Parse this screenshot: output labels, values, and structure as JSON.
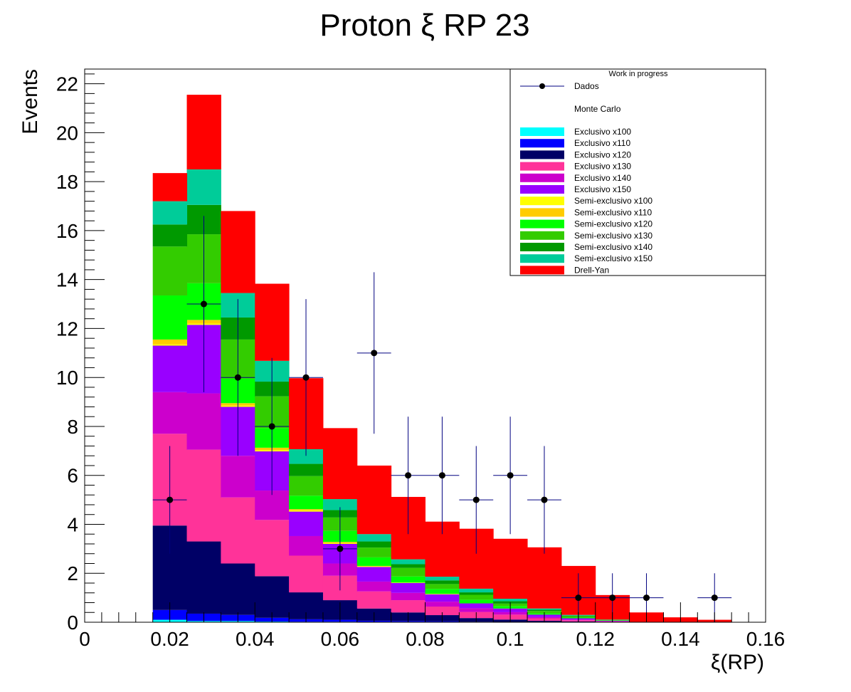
{
  "chart_data": {
    "type": "bar",
    "stacked": true,
    "title": "Proton ξ RP 23",
    "xlabel": "ξ(RP)",
    "ylabel": "Events",
    "xlim": [
      0,
      0.16
    ],
    "ylim": [
      0,
      22.6
    ],
    "xticks": [
      "0",
      "0.02",
      "0.04",
      "0.06",
      "0.08",
      "0.1",
      "0.12",
      "0.14",
      "0.16"
    ],
    "yticks": [
      "0",
      "2",
      "4",
      "6",
      "8",
      "10",
      "12",
      "14",
      "16",
      "18",
      "20",
      "22"
    ],
    "bin_edges": [
      0.016,
      0.024,
      0.032,
      0.04,
      0.048,
      0.056,
      0.064,
      0.072,
      0.08,
      0.088,
      0.096,
      0.104,
      0.112,
      0.12,
      0.128,
      0.136,
      0.144,
      0.152
    ],
    "legend": {
      "header": "Work in progress",
      "data_label": "Dados",
      "mc_label": "Monte Carlo",
      "placement": "top-right"
    },
    "series": [
      {
        "name": "Exclusivo x100",
        "color": "#00ffff",
        "values": [
          0.1,
          0.05,
          0.05,
          0.03,
          0.02,
          0.02,
          0.01,
          0.01,
          0.01,
          0,
          0,
          0,
          0,
          0,
          0,
          0,
          0
        ]
      },
      {
        "name": "Exclusivo x110",
        "color": "#0000ff",
        "values": [
          0.4,
          0.3,
          0.25,
          0.15,
          0.1,
          0.08,
          0.05,
          0.04,
          0.03,
          0.02,
          0.01,
          0.01,
          0,
          0,
          0,
          0,
          0
        ]
      },
      {
        "name": "Exclusivo x120",
        "color": "#000066",
        "values": [
          3.45,
          2.95,
          2.1,
          1.7,
          1.1,
          0.8,
          0.5,
          0.35,
          0.25,
          0.15,
          0.1,
          0.05,
          0.03,
          0.01,
          0,
          0,
          0
        ]
      },
      {
        "name": "Exclusivo x130",
        "color": "#ff3399",
        "values": [
          3.75,
          3.75,
          2.7,
          2.3,
          1.5,
          1.0,
          0.7,
          0.5,
          0.35,
          0.25,
          0.2,
          0.1,
          0.05,
          0.02,
          0,
          0,
          0
        ]
      },
      {
        "name": "Exclusivo x140",
        "color": "#cc00cc",
        "values": [
          1.7,
          2.3,
          1.7,
          1.2,
          0.8,
          0.5,
          0.4,
          0.3,
          0.2,
          0.15,
          0.1,
          0.05,
          0.03,
          0.01,
          0,
          0,
          0
        ]
      },
      {
        "name": "Exclusivo x150",
        "color": "#9900ff",
        "values": [
          1.9,
          2.8,
          2.0,
          1.6,
          1.0,
          0.8,
          0.6,
          0.4,
          0.3,
          0.2,
          0.15,
          0.1,
          0.05,
          0.02,
          0,
          0,
          0
        ]
      },
      {
        "name": "Semi-exclusivo x100",
        "color": "#ffff00",
        "values": [
          0.05,
          0.05,
          0.05,
          0.05,
          0.05,
          0.03,
          0.02,
          0.01,
          0.01,
          0,
          0,
          0,
          0,
          0,
          0,
          0,
          0
        ]
      },
      {
        "name": "Semi-exclusivo x110",
        "color": "#ffcc00",
        "values": [
          0.2,
          0.15,
          0.1,
          0.1,
          0.05,
          0.05,
          0.02,
          0.01,
          0.01,
          0,
          0,
          0,
          0,
          0,
          0,
          0,
          0
        ]
      },
      {
        "name": "Semi-exclusivo x120",
        "color": "#00ff00",
        "values": [
          1.8,
          1.5,
          1.0,
          0.8,
          0.55,
          0.45,
          0.35,
          0.25,
          0.2,
          0.15,
          0.1,
          0.05,
          0.03,
          0.01,
          0,
          0,
          0
        ]
      },
      {
        "name": "Semi-exclusivo x130",
        "color": "#33cc00",
        "values": [
          2.0,
          2.0,
          1.6,
          1.3,
          0.8,
          0.55,
          0.4,
          0.35,
          0.2,
          0.2,
          0.1,
          0.1,
          0.05,
          0.02,
          0,
          0,
          0
        ]
      },
      {
        "name": "Semi-exclusivo x140",
        "color": "#009900",
        "values": [
          0.9,
          1.2,
          0.9,
          0.6,
          0.5,
          0.3,
          0.25,
          0.15,
          0.15,
          0.1,
          0.1,
          0.05,
          0.03,
          0.01,
          0,
          0,
          0
        ]
      },
      {
        "name": "Semi-exclusivo x150",
        "color": "#00cc99",
        "values": [
          0.95,
          1.45,
          1.0,
          0.85,
          0.6,
          0.45,
          0.3,
          0.2,
          0.15,
          0.15,
          0.1,
          0.05,
          0.03,
          0.01,
          0,
          0,
          0
        ]
      },
      {
        "name": "Drell-Yan",
        "color": "#ff0000",
        "values": [
          1.15,
          3.05,
          3.35,
          3.15,
          2.9,
          2.9,
          2.8,
          2.55,
          2.25,
          2.45,
          2.45,
          2.5,
          2.0,
          1.0,
          0.4,
          0.2,
          0.1
        ]
      }
    ],
    "data_points": {
      "name": "Dados",
      "color": "#000000",
      "error_color": "#000080",
      "x": [
        0.02,
        0.028,
        0.036,
        0.044,
        0.052,
        0.06,
        0.068,
        0.076,
        0.084,
        0.092,
        0.1,
        0.108,
        0.116,
        0.124,
        0.132,
        0.148
      ],
      "y": [
        5,
        13,
        10,
        8,
        10,
        3,
        11,
        6,
        6,
        5,
        6,
        5,
        1,
        1,
        1,
        1
      ],
      "yerr": [
        2.2,
        3.6,
        3.2,
        2.8,
        3.2,
        1.7,
        3.3,
        2.4,
        2.4,
        2.2,
        2.4,
        2.2,
        1.0,
        1.0,
        1.0,
        1.0
      ],
      "xerr": 0.004
    }
  }
}
